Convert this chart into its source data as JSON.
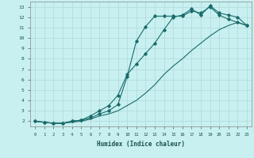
{
  "xlabel": "Humidex (Indice chaleur)",
  "background_color": "#c8f0f0",
  "grid_color": "#b0d8d8",
  "line_color": "#1a6b6b",
  "xlim": [
    -0.5,
    23.5
  ],
  "ylim": [
    1.5,
    13.5
  ],
  "xticks": [
    0,
    1,
    2,
    3,
    4,
    5,
    6,
    7,
    8,
    9,
    10,
    11,
    12,
    13,
    14,
    15,
    16,
    17,
    18,
    19,
    20,
    21,
    22,
    23
  ],
  "yticks": [
    2,
    3,
    4,
    5,
    6,
    7,
    8,
    9,
    10,
    11,
    12,
    13
  ],
  "line1_x": [
    0,
    1,
    2,
    3,
    4,
    5,
    6,
    7,
    8,
    9,
    10,
    11,
    12,
    13,
    14,
    15,
    16,
    17,
    18,
    19,
    20,
    21,
    22,
    23
  ],
  "line1_y": [
    2.0,
    1.9,
    1.8,
    1.8,
    2.0,
    2.1,
    2.3,
    2.7,
    3.0,
    3.6,
    6.3,
    9.7,
    11.1,
    12.1,
    12.1,
    12.1,
    12.1,
    12.6,
    12.4,
    13.0,
    12.2,
    11.8,
    11.5,
    11.2
  ],
  "line2_x": [
    0,
    1,
    2,
    3,
    4,
    5,
    6,
    7,
    8,
    9,
    10,
    11,
    12,
    13,
    14,
    15,
    16,
    17,
    18,
    19,
    20,
    21,
    22,
    23
  ],
  "line2_y": [
    2.0,
    1.9,
    1.8,
    1.8,
    2.0,
    2.1,
    2.5,
    3.0,
    3.5,
    4.5,
    6.5,
    7.5,
    8.5,
    9.5,
    10.8,
    12.0,
    12.2,
    12.8,
    12.2,
    13.1,
    12.4,
    12.2,
    12.0,
    11.2
  ],
  "line3_x": [
    0,
    1,
    2,
    3,
    4,
    5,
    6,
    7,
    8,
    9,
    10,
    11,
    12,
    13,
    14,
    15,
    16,
    17,
    18,
    19,
    20,
    21,
    22,
    23
  ],
  "line3_y": [
    2.0,
    1.9,
    1.8,
    1.8,
    1.9,
    2.0,
    2.2,
    2.5,
    2.7,
    3.0,
    3.5,
    4.0,
    4.7,
    5.5,
    6.5,
    7.3,
    8.0,
    8.8,
    9.5,
    10.2,
    10.8,
    11.2,
    11.5,
    11.2
  ]
}
